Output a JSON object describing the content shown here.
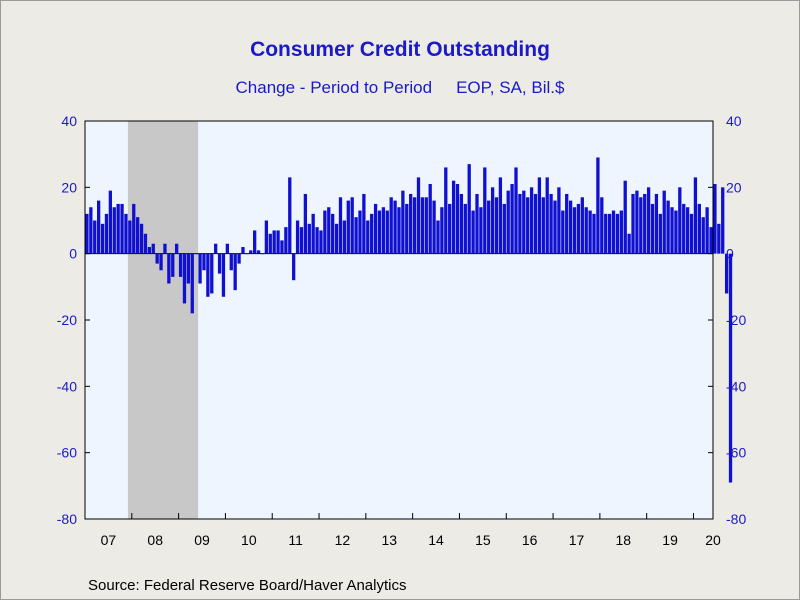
{
  "chart_data": {
    "type": "bar",
    "title": "Consumer Credit Outstanding",
    "subtitle_left": "Change - Period to Period",
    "subtitle_right": "EOP, SA, Bil.$",
    "source": "Source:  Federal Reserve Board/Haver Analytics",
    "ylim": [
      -80,
      40
    ],
    "yticks": [
      40,
      20,
      0,
      -20,
      -40,
      -60,
      -80
    ],
    "xlim": [
      2007.0,
      2020.4167
    ],
    "xticks": [
      "07",
      "08",
      "09",
      "10",
      "11",
      "12",
      "13",
      "14",
      "15",
      "16",
      "17",
      "18",
      "19",
      "20"
    ],
    "recession": [
      2007.9167,
      2009.4167
    ],
    "bar_color": "#1010d0",
    "recession_color": "#c8c8c8",
    "plot_bg": "#eef5ff",
    "series": [
      {
        "start": 2007.0,
        "step": 0.08333,
        "values": [
          12,
          14,
          10,
          16,
          9,
          12,
          19,
          14,
          15,
          15,
          12,
          10,
          15,
          11,
          9,
          6,
          2,
          3,
          -3,
          -5,
          3,
          -9,
          -7,
          3,
          -7,
          -15,
          -9,
          -18,
          0,
          -9,
          -5,
          -13,
          -12,
          3,
          -6,
          -13,
          3,
          -5,
          -11,
          -3,
          2,
          0,
          1,
          7,
          1,
          0,
          10,
          6,
          7,
          7,
          4,
          8,
          23,
          -8,
          10,
          8,
          18,
          9,
          12,
          8,
          7,
          13,
          14,
          12,
          9,
          17,
          10,
          16,
          17,
          11,
          13,
          18,
          10,
          12,
          15,
          13,
          14,
          13,
          17,
          16,
          14,
          19,
          15,
          18,
          17,
          23,
          17,
          17,
          21,
          16,
          10,
          14,
          26,
          15,
          22,
          21,
          18,
          15,
          27,
          13,
          18,
          14,
          26,
          16,
          20,
          17,
          23,
          15,
          19,
          21,
          26,
          18,
          19,
          17,
          20,
          18,
          23,
          17,
          23,
          18,
          16,
          20,
          13,
          18,
          16,
          14,
          15,
          17,
          14,
          13,
          12,
          29,
          17,
          12,
          12,
          13,
          12,
          13,
          22,
          6,
          18,
          19,
          17,
          18,
          20,
          15,
          18,
          12,
          19,
          16,
          14,
          13,
          20,
          15,
          14,
          12,
          23,
          15,
          11,
          14,
          8,
          21,
          9,
          20,
          -12,
          -69
        ]
      }
    ]
  }
}
